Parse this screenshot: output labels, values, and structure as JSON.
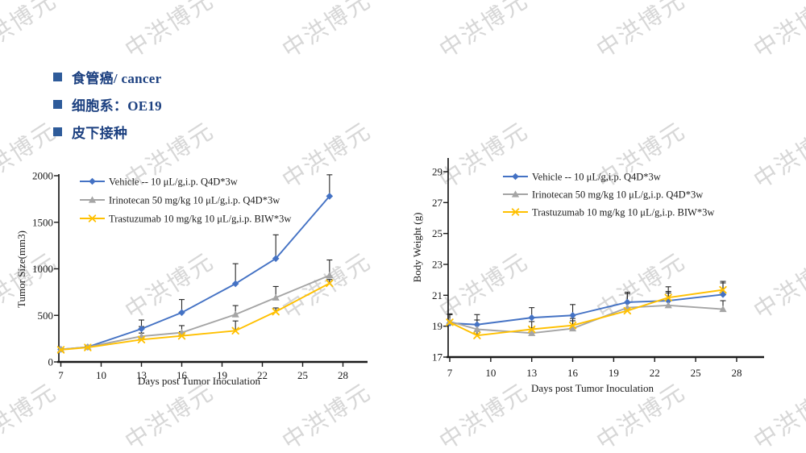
{
  "watermark": {
    "text": "中洪博元",
    "color": "#d7d7d7"
  },
  "bullets": {
    "square_color": "#2e5b9a",
    "text_color": "#1c4080",
    "items": [
      {
        "label": "食管癌/ cancer"
      },
      {
        "label": "细胞系：OE19"
      },
      {
        "label": "皮下接种"
      }
    ]
  },
  "chart_data": [
    {
      "type": "line",
      "title": "",
      "xlabel": "Days post Tumor Inoculation",
      "ylabel": "Tumor Size(mm3)",
      "xlim": [
        7,
        31
      ],
      "ylim": [
        0,
        2000
      ],
      "x_ticks": [
        7,
        10,
        13,
        16,
        19,
        22,
        25,
        28
      ],
      "y_ticks": [
        0,
        500,
        1000,
        1500,
        2000
      ],
      "grid": false,
      "legend_position": "inside-top-left",
      "error_bar_color": "#262626",
      "x": [
        7,
        9,
        13,
        16,
        20,
        23,
        27
      ],
      "series": [
        {
          "name": "Vehicle -- 10 μL/g,i.p. Q4D*3w",
          "color": "#4472c4",
          "marker": "diamond",
          "values": [
            135,
            160,
            355,
            530,
            840,
            1110,
            1780
          ],
          "err_up": [
            15,
            15,
            95,
            140,
            215,
            255,
            230
          ]
        },
        {
          "name": "Irinotecan 50 mg/kg 10 μL/g,i.p. Q4D*3w",
          "color": "#a5a5a5",
          "marker": "triangle",
          "values": [
            135,
            160,
            275,
            315,
            510,
            690,
            930
          ],
          "err_up": [
            10,
            15,
            105,
            75,
            95,
            120,
            165
          ]
        },
        {
          "name": "Trastuzumab 10 mg/kg 10 μL/g,i.p. BIW*3w",
          "color": "#ffc000",
          "marker": "x",
          "values": [
            130,
            155,
            240,
            280,
            335,
            540,
            845
          ],
          "err_up": [
            10,
            15,
            70,
            45,
            105,
            40,
            40
          ]
        }
      ]
    },
    {
      "type": "line",
      "title": "",
      "xlabel": "Days post Tumor Inoculation",
      "ylabel": "Body Weight (g)",
      "xlim": [
        7,
        30
      ],
      "ylim": [
        17,
        29
      ],
      "x_ticks": [
        7,
        10,
        13,
        16,
        19,
        22,
        25,
        28
      ],
      "y_ticks": [
        17,
        19,
        21,
        23,
        25,
        27,
        29
      ],
      "grid": false,
      "legend_position": "inside-top",
      "error_bar_color": "#262626",
      "x": [
        7,
        9,
        13,
        16,
        20,
        23,
        27
      ],
      "series": [
        {
          "name": "Vehicle -- 10 μL/g,i.p. Q4D*3w",
          "color": "#4472c4",
          "marker": "diamond",
          "values": [
            19.2,
            19.1,
            19.55,
            19.7,
            20.55,
            20.65,
            21.05
          ],
          "err_up": [
            0.6,
            0.65,
            0.65,
            0.7,
            0.65,
            0.5,
            0.75
          ]
        },
        {
          "name": "Irinotecan 50 mg/kg 10 μL/g,i.p. Q4D*3w",
          "color": "#a5a5a5",
          "marker": "triangle",
          "values": [
            19.3,
            18.8,
            18.55,
            18.85,
            20.2,
            20.35,
            20.1
          ],
          "err_up": [
            0.45,
            0.6,
            0.35,
            0.5,
            0.9,
            1.2,
            0.55
          ]
        },
        {
          "name": "Trastuzumab 10 mg/kg 10 μL/g,i.p. BIW*3w",
          "color": "#ffc000",
          "marker": "x",
          "values": [
            19.25,
            18.4,
            18.8,
            19.05,
            20.0,
            20.85,
            21.35
          ],
          "err_up": [
            0.5,
            0.25,
            0.5,
            0.45,
            0.5,
            0.4,
            0.55
          ]
        }
      ]
    }
  ]
}
